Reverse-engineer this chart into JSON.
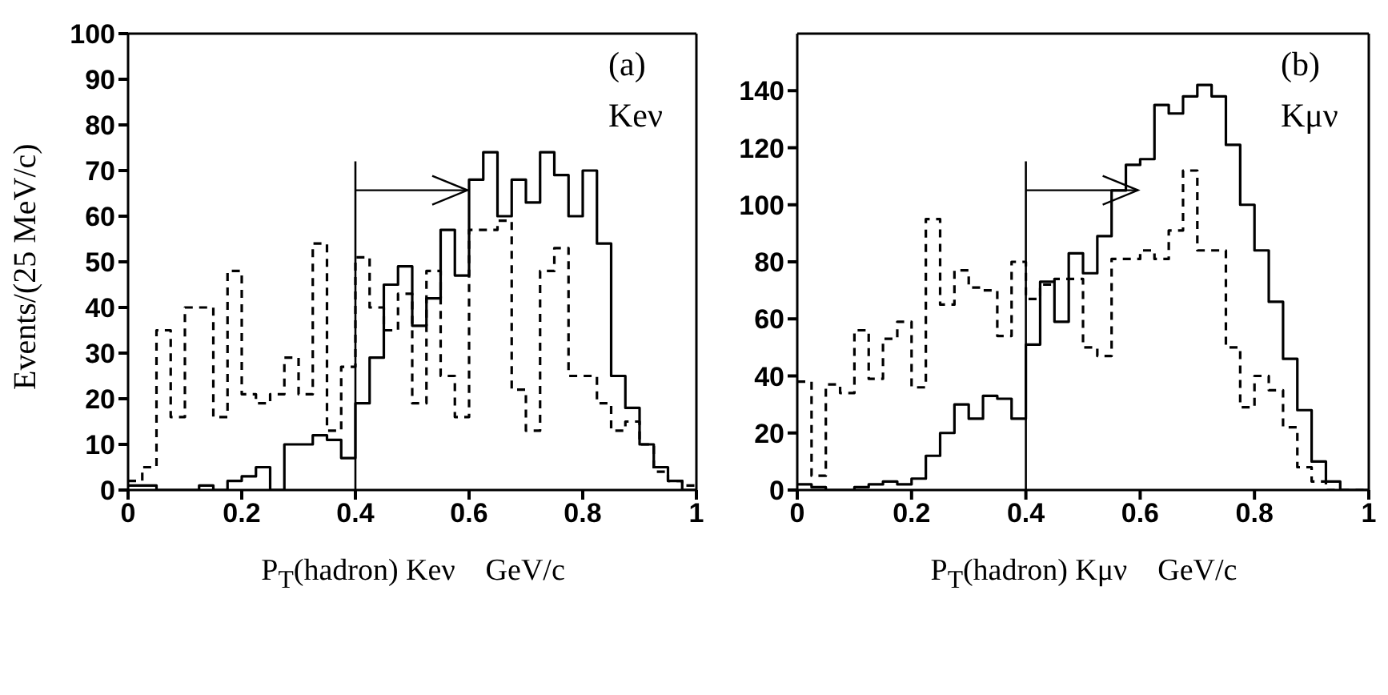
{
  "chart_data": [
    {
      "type": "histogram",
      "xlabel": "P$_{T}$(hadron) Keν    GeV/c",
      "ylabel": "Events/(25 MeV/c)",
      "annotations": [
        "(a)",
        "Keν"
      ],
      "bins": [
        0,
        0.025,
        0.05,
        0.075,
        0.1,
        0.125,
        0.15,
        0.175,
        0.2,
        0.225,
        0.25,
        0.275,
        0.3,
        0.325,
        0.35,
        0.375,
        0.4,
        0.425,
        0.45,
        0.475,
        0.5,
        0.525,
        0.55,
        0.575,
        0.6,
        0.625,
        0.65,
        0.675,
        0.7,
        0.725,
        0.75,
        0.775,
        0.8,
        0.825,
        0.85,
        0.875,
        0.9,
        0.925,
        0.95,
        0.975,
        1
      ],
      "series": [
        {
          "color": "#000000",
          "line_style": "solid",
          "values": [
            1,
            1,
            0,
            0,
            0,
            1,
            0,
            2,
            3,
            5,
            0,
            10,
            10,
            12,
            11,
            7,
            19,
            29,
            45,
            49,
            36,
            42,
            57,
            47,
            68,
            74,
            60,
            68,
            63,
            74,
            69,
            60,
            70,
            54,
            25,
            18,
            10,
            5,
            2,
            0
          ]
        },
        {
          "color": "#000000",
          "line_style": "dashed",
          "values": [
            2,
            5,
            35,
            16,
            40,
            40,
            16,
            48,
            21,
            19,
            21,
            29,
            21,
            54,
            13,
            27,
            51,
            40,
            35,
            43,
            19,
            48,
            25,
            16,
            57,
            57,
            59,
            22,
            13,
            48,
            53,
            25,
            25,
            19,
            13,
            15,
            10,
            4,
            2,
            1
          ]
        }
      ],
      "xlim": [
        0,
        1
      ],
      "xticks": [
        0,
        0.2,
        0.4,
        0.6,
        0.8,
        1
      ],
      "ylim": [
        0,
        100
      ],
      "yticks": [
        0,
        10,
        20,
        30,
        40,
        50,
        60,
        70,
        80,
        90,
        100
      ],
      "ref_lines": [
        {
          "axis": "x",
          "value": 0.4,
          "color": "#000000"
        }
      ]
    },
    {
      "type": "histogram",
      "xlabel": "P$_{T}$(hadron) Kμν    GeV/c",
      "annotations": [
        "(b)",
        "Kμν"
      ],
      "bins": [
        0,
        0.025,
        0.05,
        0.075,
        0.1,
        0.125,
        0.15,
        0.175,
        0.2,
        0.225,
        0.25,
        0.275,
        0.3,
        0.325,
        0.35,
        0.375,
        0.4,
        0.425,
        0.45,
        0.475,
        0.5,
        0.525,
        0.55,
        0.575,
        0.6,
        0.625,
        0.65,
        0.675,
        0.7,
        0.725,
        0.75,
        0.775,
        0.8,
        0.825,
        0.85,
        0.875,
        0.9,
        0.925,
        0.95,
        0.975,
        1
      ],
      "series": [
        {
          "color": "#000000",
          "line_style": "solid",
          "values": [
            2,
            1,
            0,
            0,
            1,
            2,
            3,
            2,
            4,
            12,
            20,
            30,
            25,
            33,
            32,
            25,
            51,
            73,
            59,
            83,
            76,
            89,
            105,
            114,
            116,
            135,
            132,
            138,
            142,
            138,
            121,
            100,
            84,
            66,
            46,
            28,
            10,
            3,
            0,
            0
          ]
        },
        {
          "color": "#000000",
          "line_style": "dashed",
          "values": [
            38,
            5,
            37,
            34,
            56,
            39,
            53,
            59,
            36,
            95,
            65,
            77,
            71,
            70,
            54,
            80,
            67,
            72,
            74,
            74,
            50,
            47,
            81,
            81,
            84,
            81,
            91,
            112,
            84,
            84,
            50,
            29,
            40,
            35,
            22,
            8,
            3,
            0,
            0,
            0
          ]
        }
      ],
      "xlim": [
        0,
        1
      ],
      "xticks": [
        0,
        0.2,
        0.4,
        0.6,
        0.8,
        1
      ],
      "ylim": [
        0,
        160
      ],
      "yticks": [
        0,
        20,
        40,
        60,
        80,
        100,
        120,
        140
      ],
      "ref_lines": [
        {
          "axis": "x",
          "value": 0.4,
          "color": "#000000"
        }
      ]
    }
  ]
}
